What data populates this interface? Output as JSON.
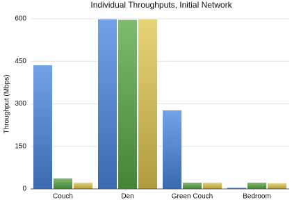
{
  "chart_data": {
    "type": "bar",
    "title": "Individual Throughputs, Initial Network",
    "y_label": "Throughput (Mbps)",
    "categories": [
      "Couch",
      "Den",
      "Green Couch",
      "Bedroom"
    ],
    "series": [
      {
        "color": "#4a88e0",
        "values": [
          436,
          598,
          277,
          4
        ]
      },
      {
        "color": "#5aa845",
        "values": [
          37,
          596,
          22,
          22
        ]
      },
      {
        "color": "#e0c850",
        "values": [
          22,
          598,
          22,
          20
        ]
      }
    ],
    "ylim": [
      0,
      600
    ],
    "yticks": [
      0,
      150,
      300,
      450,
      600
    ],
    "grid": true
  }
}
